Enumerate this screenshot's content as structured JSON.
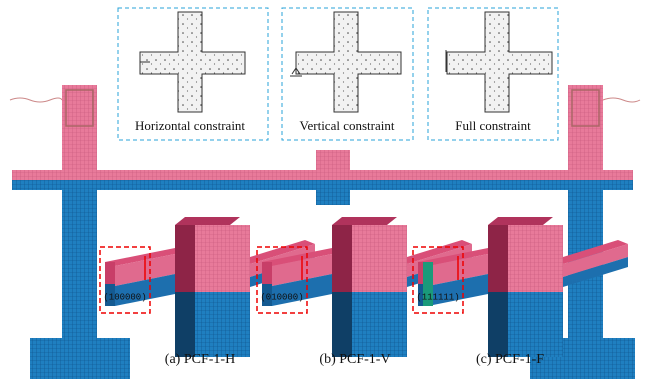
{
  "constraints": [
    {
      "label": "Horizontal constraint"
    },
    {
      "label": "Vertical constraint"
    },
    {
      "label": "Full constraint"
    }
  ],
  "models": [
    {
      "code": "(100000)",
      "caption": "(a) PCF-1-H"
    },
    {
      "code": "(010000)",
      "caption": "(b) PCF-1-V"
    },
    {
      "code": "(111111)",
      "caption": "(c) PCF-1-F"
    }
  ]
}
